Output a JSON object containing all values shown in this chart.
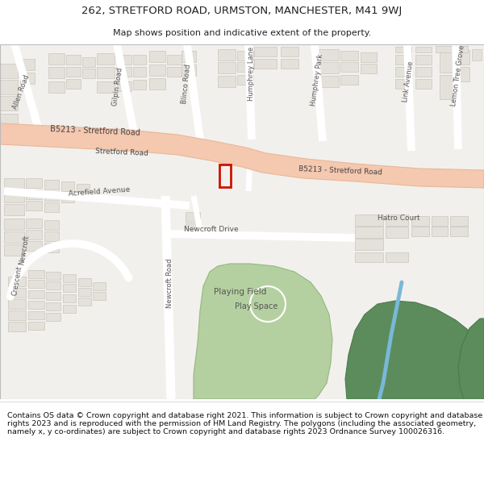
{
  "title_line1": "262, STRETFORD ROAD, URMSTON, MANCHESTER, M41 9WJ",
  "title_line2": "Map shows position and indicative extent of the property.",
  "footer_text": "Contains OS data © Crown copyright and database right 2021. This information is subject to Crown copyright and database rights 2023 and is reproduced with the permission of HM Land Registry. The polygons (including the associated geometry, namely x, y co-ordinates) are subject to Crown copyright and database rights 2023 Ordnance Survey 100026316.",
  "map_bg": "#f2f0ed",
  "road_color": "#f5c8b0",
  "road_edge": "#e8b898",
  "building_fill": "#e4e0da",
  "building_stroke": "#cac6bf",
  "green_light": "#b5d0a0",
  "green_dark": "#5c8c5c",
  "blue_line": "#7ab8d8",
  "plot_color": "#cc1100",
  "text_color": "#222222",
  "road_label_color": "#444444",
  "street_label_color": "#555555"
}
